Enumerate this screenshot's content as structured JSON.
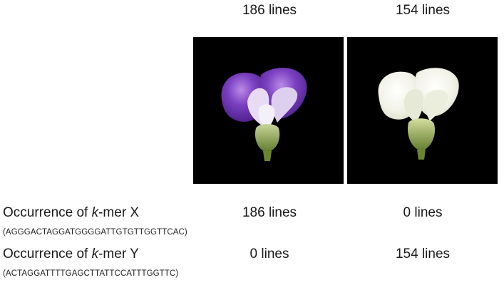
{
  "columns": [
    {
      "header": "186 lines",
      "flower_color": "#7a3fc0",
      "image_name": "purple-flower"
    },
    {
      "header": "154 lines",
      "flower_color": "#f2f2e8",
      "image_name": "white-flower"
    }
  ],
  "rows": [
    {
      "label_prefix": "Occurrence of ",
      "label_italic": "k",
      "label_suffix": "-mer X",
      "sequence": "(AGGGACTAGGATGGGGATTGTGTTGGTTCAC)",
      "values": [
        "186 lines",
        "0 lines"
      ]
    },
    {
      "label_prefix": "Occurrence of ",
      "label_italic": "k",
      "label_suffix": "-mer Y",
      "sequence": "(ACTAGGATTTTGAGCTTATTCCATTTGGTTC)",
      "values": [
        "0 lines",
        "154 lines"
      ]
    }
  ]
}
